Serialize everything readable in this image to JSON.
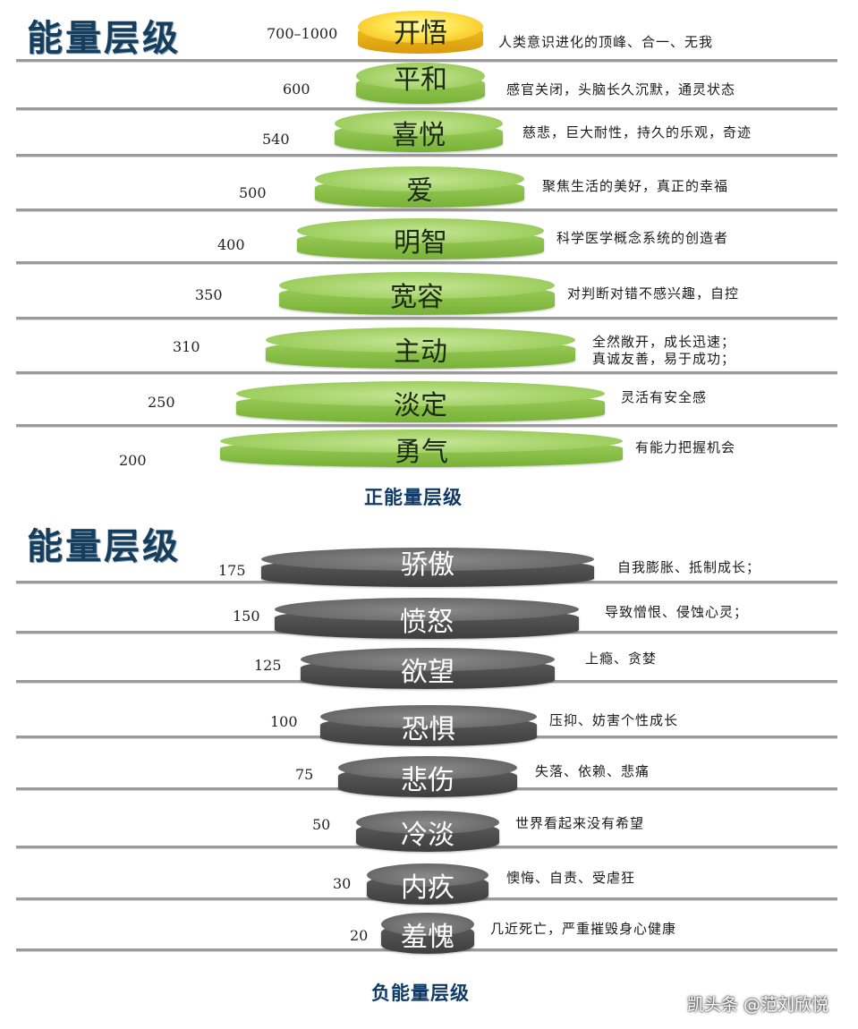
{
  "positive": {
    "heading": "能量层级",
    "caption": "正能量层级",
    "levels": [
      {
        "value": "700–1000",
        "label": "开悟",
        "desc": "人类意识进化的顶峰、合一、无我"
      },
      {
        "value": "600",
        "label": "平和",
        "desc": "感官关闭，头脑长久沉默，通灵状态"
      },
      {
        "value": "540",
        "label": "喜悦",
        "desc": "慈悲，巨大耐性，持久的乐观，奇迹"
      },
      {
        "value": "500",
        "label": "爱",
        "desc": "聚焦生活的美好，真正的幸福"
      },
      {
        "value": "400",
        "label": "明智",
        "desc": "科学医学概念系统的创造者"
      },
      {
        "value": "350",
        "label": "宽容",
        "desc": "对判断对错不感兴趣，自控"
      },
      {
        "value": "310",
        "label": "主动",
        "desc": "全然敞开，成长迅速；",
        "desc2": "真诚友善，易于成功；"
      },
      {
        "value": "250",
        "label": "淡定",
        "desc": "灵活有安全感"
      },
      {
        "value": "200",
        "label": "勇气",
        "desc": "有能力把握机会"
      }
    ]
  },
  "negative": {
    "heading": "能量层级",
    "caption": "负能量层级",
    "levels": [
      {
        "value": "175",
        "label": "骄傲",
        "desc": "自我膨胀、抵制成长；"
      },
      {
        "value": "150",
        "label": "愤怒",
        "desc": "导致憎恨、侵蚀心灵；"
      },
      {
        "value": "125",
        "label": "欲望",
        "desc": "上瘾、贪婪"
      },
      {
        "value": "100",
        "label": "恐惧",
        "desc": "压抑、妨害个性成长"
      },
      {
        "value": "75",
        "label": "悲伤",
        "desc": "失落、依赖、悲痛"
      },
      {
        "value": "50",
        "label": "冷淡",
        "desc": "世界看起来没有希望"
      },
      {
        "value": "30",
        "label": "内疚",
        "desc": "懊悔、自责、受虐狂"
      },
      {
        "value": "20",
        "label": "羞愧",
        "desc": "几近死亡，严重摧毁身心健康"
      }
    ]
  },
  "watermark": "凯头条 @范刘欣悦",
  "colors": {
    "positive_disc": "#8cc14b",
    "enlightenment_disc": "#ffe24a",
    "negative_disc": "#5a5a5a",
    "heading": "#173d5c",
    "caption": "#0f3a66"
  }
}
